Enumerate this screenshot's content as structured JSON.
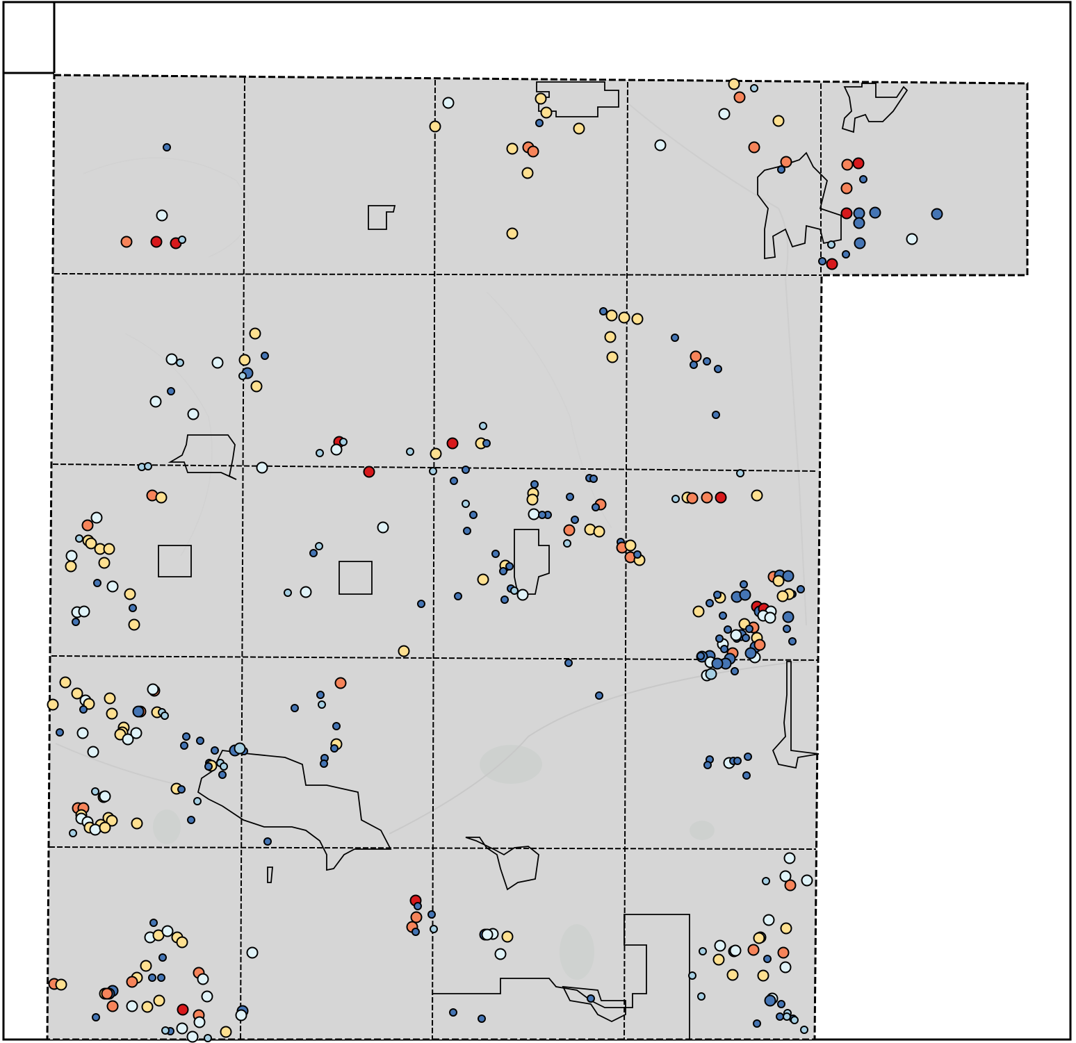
{
  "map": {
    "type": "point-map",
    "title": "",
    "legend": "",
    "colors": {
      "county_fill": "#d6d6d6",
      "township_line": "#000000",
      "city_boundary": "#000000",
      "water_feature": "#c9cfcc",
      "background": "#ffffff"
    },
    "class_colors": {
      "very_low": "#d7191c",
      "low": "#f6845a",
      "medium_low": "#fee090",
      "medium": "#e0f3f8",
      "medium_high": "#a6cfe3",
      "high": "#4575b4"
    },
    "point_classes": [
      "very_low",
      "low",
      "medium_low",
      "medium",
      "medium_high",
      "high"
    ]
  }
}
